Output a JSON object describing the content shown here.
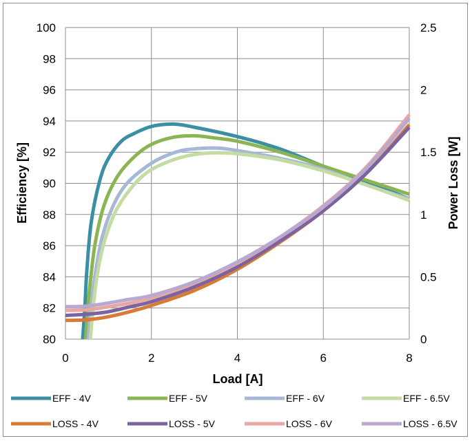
{
  "chart_data": {
    "type": "line",
    "title": "",
    "xlabel": "Load [A]",
    "ylabel": "Efficiency [%]",
    "y2label": "Power Loss [W]",
    "xlim": [
      0,
      8
    ],
    "ylim": [
      80,
      100
    ],
    "y2lim": [
      0,
      2.5
    ],
    "x_ticks": [
      0,
      2,
      4,
      6,
      8
    ],
    "y_ticks": [
      80,
      82,
      84,
      86,
      88,
      90,
      92,
      94,
      96,
      98,
      100
    ],
    "y2_ticks": [
      0,
      0.5,
      1,
      1.5,
      2,
      2.5
    ],
    "grid": true,
    "legend_position": "bottom",
    "series": [
      {
        "name": "EFF - 4V",
        "axis": "left",
        "color": "#3b8fa5",
        "x": [
          0.4,
          0.45,
          0.5,
          0.6,
          0.8,
          1.0,
          1.3,
          1.6,
          2.0,
          2.5,
          3.0,
          4.0,
          5.0,
          6.0,
          7.0,
          8.0
        ],
        "y": [
          80,
          82,
          84.5,
          87.5,
          90.2,
          91.6,
          92.7,
          93.2,
          93.65,
          93.8,
          93.6,
          93.0,
          92.2,
          91.1,
          90.1,
          89.0
        ]
      },
      {
        "name": "EFF - 5V",
        "axis": "left",
        "color": "#8bb552",
        "x": [
          0.47,
          0.52,
          0.6,
          0.7,
          0.9,
          1.2,
          1.6,
          2.0,
          2.5,
          3.0,
          3.5,
          4.0,
          5.0,
          6.0,
          7.0,
          8.0
        ],
        "y": [
          80,
          82,
          84.2,
          86.3,
          88.6,
          90.4,
          91.7,
          92.5,
          92.95,
          93.05,
          92.9,
          92.7,
          92.0,
          91.1,
          90.2,
          89.3
        ]
      },
      {
        "name": "EFF - 6V",
        "axis": "left",
        "color": "#a6b8d6",
        "x": [
          0.53,
          0.6,
          0.7,
          0.85,
          1.1,
          1.4,
          1.8,
          2.2,
          2.7,
          3.2,
          3.6,
          4.0,
          5.0,
          6.0,
          7.0,
          8.0
        ],
        "y": [
          80,
          82.2,
          84.3,
          86.5,
          88.5,
          89.9,
          90.9,
          91.6,
          92.1,
          92.25,
          92.25,
          92.1,
          91.6,
          90.9,
          89.9,
          89.0
        ]
      },
      {
        "name": "EFF - 6.5V",
        "axis": "left",
        "color": "#c4dca4",
        "x": [
          0.58,
          0.65,
          0.75,
          0.9,
          1.15,
          1.5,
          1.9,
          2.4,
          2.9,
          3.4,
          4.0,
          5.0,
          6.0,
          7.0,
          8.0
        ],
        "y": [
          80,
          82.2,
          84.3,
          86.2,
          88.1,
          89.6,
          90.7,
          91.4,
          91.8,
          91.95,
          91.9,
          91.5,
          90.8,
          89.9,
          88.9
        ]
      },
      {
        "name": "LOSS - 4V",
        "axis": "right",
        "color": "#d97b36",
        "x": [
          0,
          0.5,
          1.0,
          1.5,
          2.0,
          3.0,
          4.0,
          5.0,
          6.0,
          7.0,
          8.0
        ],
        "y": [
          0.15,
          0.155,
          0.18,
          0.22,
          0.27,
          0.39,
          0.56,
          0.78,
          1.03,
          1.33,
          1.72
        ]
      },
      {
        "name": "LOSS - 5V",
        "axis": "right",
        "color": "#7b63a0",
        "x": [
          0,
          0.5,
          1.0,
          1.5,
          2.0,
          3.0,
          4.0,
          5.0,
          6.0,
          7.0,
          8.0
        ],
        "y": [
          0.19,
          0.2,
          0.22,
          0.26,
          0.3,
          0.42,
          0.58,
          0.79,
          1.03,
          1.33,
          1.7
        ]
      },
      {
        "name": "LOSS - 6V",
        "axis": "right",
        "color": "#e8a7a0",
        "x": [
          0,
          0.5,
          1.0,
          1.5,
          2.0,
          3.0,
          4.0,
          5.0,
          6.0,
          7.0,
          8.0
        ],
        "y": [
          0.23,
          0.235,
          0.26,
          0.29,
          0.33,
          0.45,
          0.61,
          0.82,
          1.07,
          1.38,
          1.8
        ]
      },
      {
        "name": "LOSS - 6.5V",
        "axis": "right",
        "color": "#b7a9cf",
        "x": [
          0,
          0.5,
          1.0,
          1.5,
          2.0,
          3.0,
          4.0,
          5.0,
          6.0,
          7.0,
          8.0
        ],
        "y": [
          0.26,
          0.265,
          0.29,
          0.32,
          0.35,
          0.46,
          0.62,
          0.82,
          1.06,
          1.37,
          1.77
        ]
      }
    ]
  }
}
